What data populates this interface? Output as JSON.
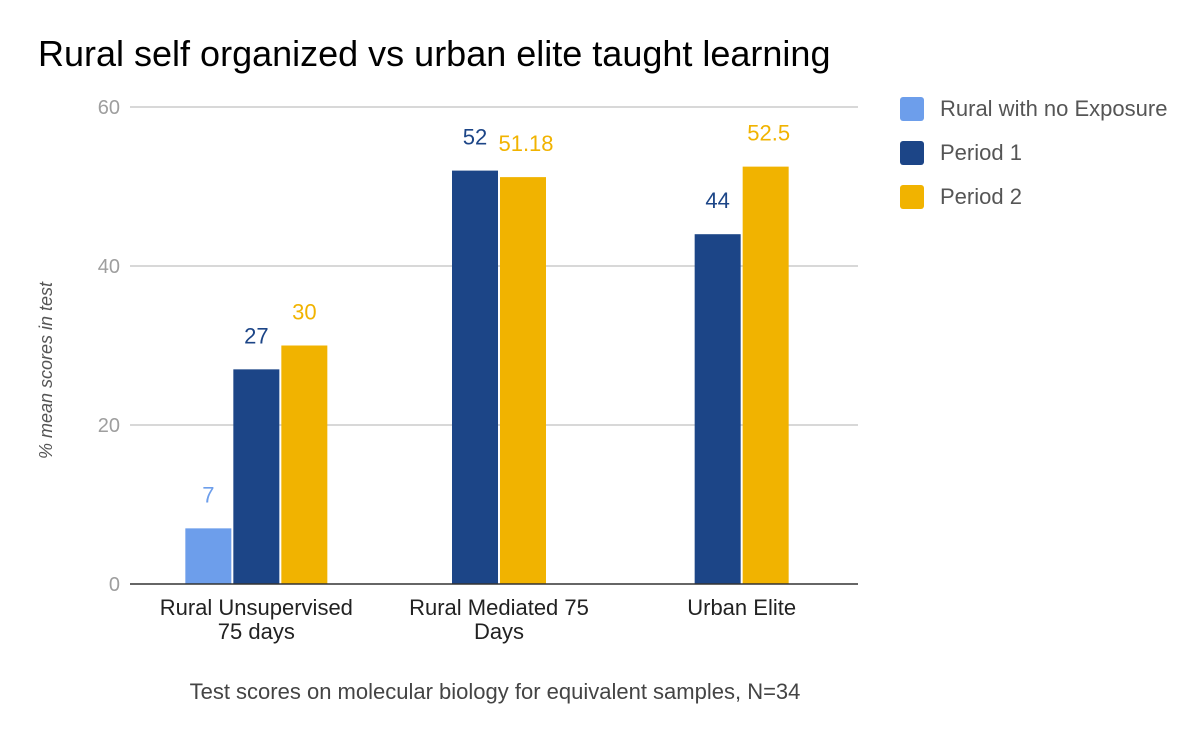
{
  "chart_data": {
    "type": "bar",
    "title": "Rural self organized vs urban elite taught learning",
    "xlabel": "Test scores on molecular biology for equivalent samples, N=34",
    "ylabel": "% mean scores in test",
    "ylim": [
      0,
      60
    ],
    "yticks": [
      0,
      20,
      40,
      60
    ],
    "grid": true,
    "legend_position": "right",
    "categories": [
      [
        "Rural Unsupervised",
        "75 days"
      ],
      [
        "Rural Mediated 75",
        "Days"
      ],
      [
        "Urban Elite"
      ]
    ],
    "series": [
      {
        "name": "Rural with no Exposure",
        "color": "#6d9eeb",
        "values": [
          7,
          null,
          null
        ],
        "labels": [
          "7",
          null,
          null
        ]
      },
      {
        "name": "Period 1",
        "color": "#1c4587",
        "values": [
          27,
          52,
          44
        ],
        "labels": [
          "27",
          "52",
          "44"
        ]
      },
      {
        "name": "Period 2",
        "color": "#f1b300",
        "values": [
          30,
          51.18,
          52.5
        ],
        "labels": [
          "30",
          "51.18",
          "52.5"
        ]
      }
    ]
  }
}
